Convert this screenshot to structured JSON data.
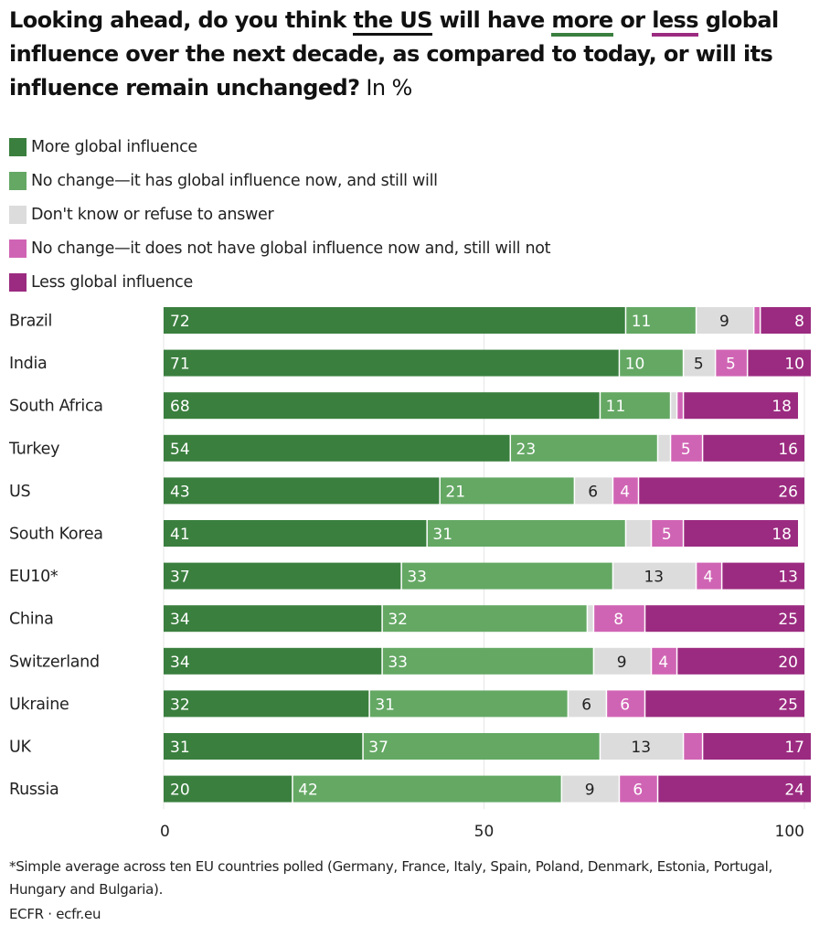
{
  "title": {
    "part1": "Looking ahead, do you think ",
    "us": "the US",
    "part2": " will have ",
    "more": "more",
    "part3": " or ",
    "less": "less",
    "part4": " global influence over the next decade, as compared to today, or will its influence remain unchanged?",
    "unit": " In %"
  },
  "legend": [
    {
      "label": "More global influence",
      "color": "#3a7f3e"
    },
    {
      "label": "No change—it has global influence now, and still will",
      "color": "#64a864"
    },
    {
      "label": "Don't know or refuse to answer",
      "color": "#dcdcdc"
    },
    {
      "label": "No change—it does not have global influence now and, still will not",
      "color": "#d064b4"
    },
    {
      "label": "Less global influence",
      "color": "#9b2b80"
    }
  ],
  "chart_data": {
    "type": "bar",
    "orientation": "horizontal",
    "stacked": true,
    "title": "Looking ahead, do you think the US will have more or less global influence over the next decade, as compared to today, or will its influence remain unchanged? In %",
    "xlabel": "",
    "ylabel": "",
    "xlim": [
      0,
      100
    ],
    "xticks": [
      0,
      50,
      100
    ],
    "grid": true,
    "legend_position": "top-left",
    "categories": [
      "Brazil",
      "India",
      "South Africa",
      "Turkey",
      "US",
      "South Korea",
      "EU10*",
      "China",
      "Switzerland",
      "Ukraine",
      "UK",
      "Russia"
    ],
    "series": [
      {
        "name": "More global influence",
        "color": "#3a7f3e",
        "label_color": "#ffffff",
        "values": [
          72,
          71,
          68,
          54,
          43,
          41,
          37,
          34,
          34,
          32,
          31,
          20
        ],
        "labels": [
          "72",
          "71",
          "68",
          "54",
          "43",
          "41",
          "37",
          "34",
          "34",
          "32",
          "31",
          "20"
        ]
      },
      {
        "name": "No change—it has global influence now, and still will",
        "color": "#64a864",
        "label_color": "#ffffff",
        "values": [
          11,
          10,
          11,
          23,
          21,
          31,
          33,
          32,
          33,
          31,
          37,
          42
        ],
        "labels": [
          "11",
          "10",
          "11",
          "23",
          "21",
          "31",
          "33",
          "32",
          "33",
          "31",
          "37",
          "42"
        ]
      },
      {
        "name": "Don't know or refuse to answer",
        "color": "#dcdcdc",
        "label_color": "#222222",
        "values": [
          9,
          5,
          1,
          2,
          6,
          4,
          13,
          1,
          9,
          6,
          13,
          9
        ],
        "labels": [
          "9",
          "5",
          "",
          "",
          "6",
          "",
          "13",
          "",
          "9",
          "6",
          "13",
          "9"
        ]
      },
      {
        "name": "No change—it does not have global influence now and, still will not",
        "color": "#d064b4",
        "label_color": "#ffffff",
        "values": [
          1,
          5,
          1,
          5,
          4,
          5,
          4,
          8,
          4,
          6,
          3,
          6
        ],
        "labels": [
          "",
          "5",
          "",
          "5",
          "4",
          "5",
          "4",
          "8",
          "4",
          "6",
          "",
          "6"
        ]
      },
      {
        "name": "Less global influence",
        "color": "#9b2b80",
        "label_color": "#ffffff",
        "values": [
          8,
          10,
          18,
          16,
          26,
          18,
          13,
          25,
          20,
          25,
          17,
          24
        ],
        "labels": [
          "8",
          "10",
          "18",
          "16",
          "26",
          "18",
          "13",
          "25",
          "20",
          "25",
          "17",
          "24"
        ]
      }
    ]
  },
  "footnote": "*Simple average across ten EU countries polled (Germany, France, Italy, Spain, Poland, Denmark, Estonia, Portugal, Hungary and Bulgaria).",
  "source": "ECFR · ecfr.eu"
}
